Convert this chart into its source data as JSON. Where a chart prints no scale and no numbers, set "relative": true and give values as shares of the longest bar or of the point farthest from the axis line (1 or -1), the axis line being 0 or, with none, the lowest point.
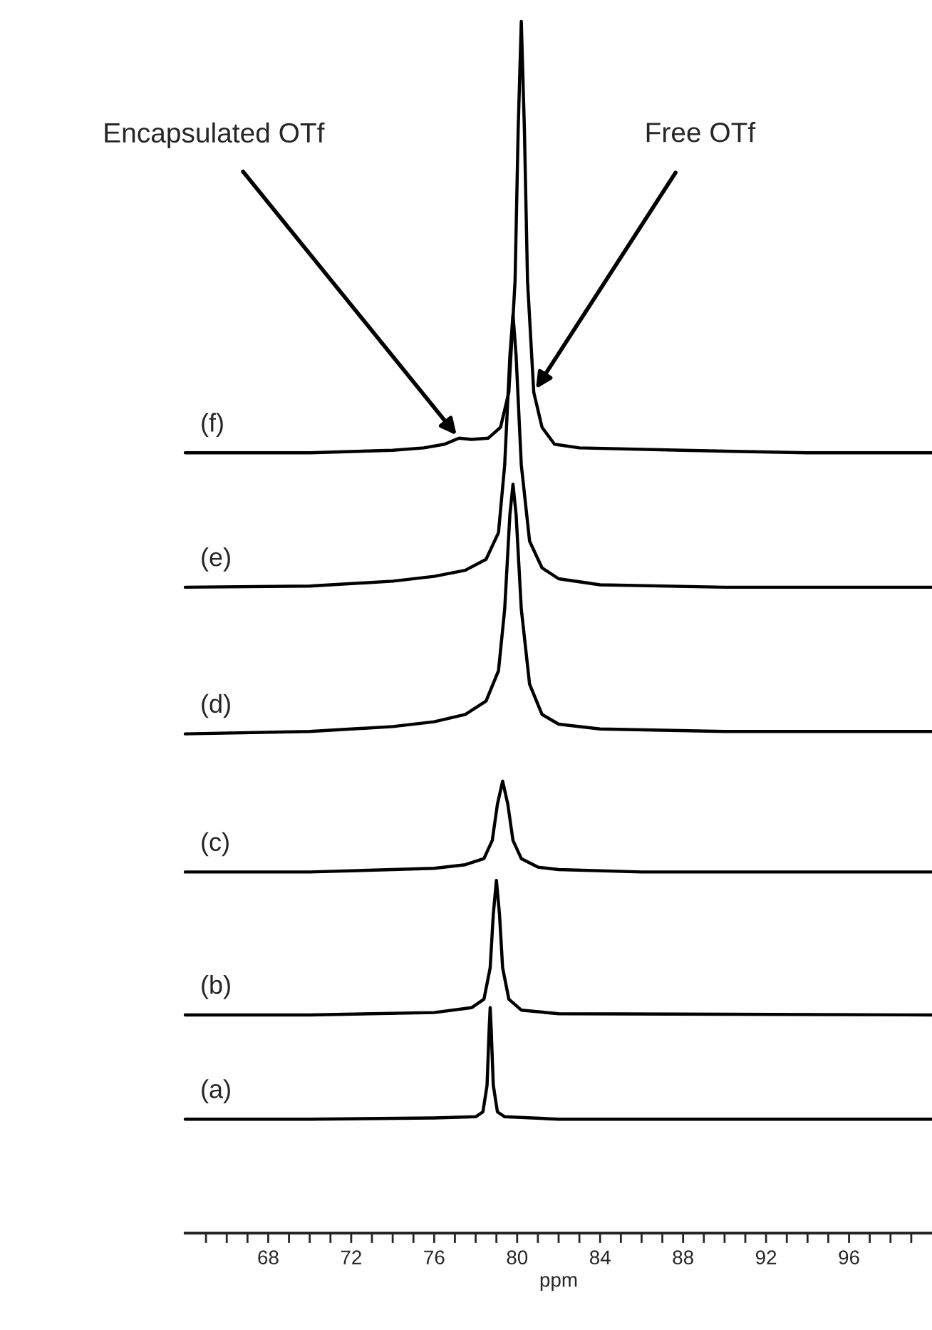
{
  "chart_data": {
    "type": "line",
    "relative": true,
    "tick_labels": "x",
    "xlim": [
      64,
      100
    ],
    "grid": false,
    "legend": false,
    "xlabel": "ppm",
    "xticks": [
      {
        "value": 65,
        "label": null
      },
      {
        "value": 66,
        "label": null
      },
      {
        "value": 67,
        "label": null
      },
      68,
      {
        "value": 69,
        "label": null
      },
      {
        "value": 70,
        "label": null
      },
      {
        "value": 71,
        "label": null
      },
      72,
      {
        "value": 73,
        "label": null
      },
      {
        "value": 74,
        "label": null
      },
      {
        "value": 75,
        "label": null
      },
      76,
      {
        "value": 77,
        "label": null
      },
      {
        "value": 78,
        "label": null
      },
      {
        "value": 79,
        "label": null
      },
      80,
      {
        "value": 81,
        "label": null
      },
      {
        "value": 82,
        "label": null
      },
      {
        "value": 83,
        "label": null
      },
      84,
      {
        "value": 85,
        "label": null
      },
      {
        "value": 86,
        "label": null
      },
      {
        "value": 87,
        "label": null
      },
      88,
      {
        "value": 89,
        "label": null
      },
      {
        "value": 90,
        "label": null
      },
      {
        "value": 91,
        "label": null
      },
      92,
      {
        "value": 93,
        "label": null
      },
      {
        "value": 94,
        "label": null
      },
      {
        "value": 95,
        "label": null
      },
      96,
      {
        "value": 97,
        "label": null
      },
      {
        "value": 98,
        "label": null
      },
      {
        "value": 99,
        "label": null
      }
    ],
    "series": [
      {
        "name": "(f)",
        "color": "#000000",
        "x": [
          64,
          70,
          74,
          75.5,
          76.5,
          77.2,
          77.8,
          78.6,
          79.2,
          79.6,
          79.9,
          80.05,
          80.2,
          80.35,
          80.5,
          80.8,
          81.2,
          81.8,
          83,
          88,
          94,
          100
        ],
        "values": [
          0.644,
          0.644,
          0.646,
          0.648,
          0.651,
          0.656,
          0.655,
          0.656,
          0.665,
          0.694,
          0.786,
          0.911,
          1.0,
          0.911,
          0.786,
          0.694,
          0.665,
          0.651,
          0.648,
          0.646,
          0.644,
          0.644
        ]
      },
      {
        "name": "(e)",
        "color": "#000000",
        "x": [
          64,
          70,
          74,
          76,
          77.5,
          78.5,
          79.1,
          79.4,
          79.65,
          79.8,
          79.95,
          80.2,
          80.6,
          81.2,
          82,
          84,
          90,
          100
        ],
        "values": [
          0.533,
          0.534,
          0.538,
          0.542,
          0.547,
          0.556,
          0.578,
          0.634,
          0.724,
          0.758,
          0.724,
          0.634,
          0.571,
          0.549,
          0.54,
          0.535,
          0.533,
          0.533
        ]
      },
      {
        "name": "(d)",
        "color": "#000000",
        "x": [
          64,
          70,
          74,
          76,
          77.5,
          78.5,
          79.1,
          79.4,
          79.65,
          79.8,
          79.95,
          80.2,
          80.6,
          81.2,
          82,
          84,
          90,
          100
        ],
        "values": [
          0.412,
          0.414,
          0.418,
          0.422,
          0.428,
          0.439,
          0.464,
          0.515,
          0.593,
          0.618,
          0.593,
          0.515,
          0.453,
          0.428,
          0.42,
          0.416,
          0.414,
          0.414
        ]
      },
      {
        "name": "(c)",
        "color": "#000000",
        "x": [
          64,
          70,
          74,
          76,
          77.5,
          78.4,
          78.8,
          79.05,
          79.3,
          79.55,
          79.8,
          80.2,
          81,
          82,
          86,
          100
        ],
        "values": [
          0.298,
          0.298,
          0.3,
          0.301,
          0.304,
          0.309,
          0.324,
          0.354,
          0.373,
          0.354,
          0.324,
          0.309,
          0.302,
          0.3,
          0.298,
          0.298
        ]
      },
      {
        "name": "(b)",
        "color": "#000000",
        "x": [
          64,
          70,
          76,
          77.8,
          78.4,
          78.7,
          78.85,
          79.0,
          79.15,
          79.3,
          79.6,
          80.2,
          82,
          100
        ],
        "values": [
          0.18,
          0.18,
          0.182,
          0.186,
          0.193,
          0.219,
          0.263,
          0.291,
          0.263,
          0.219,
          0.193,
          0.184,
          0.181,
          0.18
        ]
      },
      {
        "name": "(a)",
        "color": "#000000",
        "x": [
          64,
          70,
          76,
          78.0,
          78.35,
          78.55,
          78.65,
          78.7,
          78.75,
          78.85,
          79.05,
          79.4,
          82,
          90,
          100
        ],
        "values": [
          0.094,
          0.094,
          0.095,
          0.096,
          0.1,
          0.122,
          0.168,
          0.186,
          0.168,
          0.122,
          0.1,
          0.096,
          0.094,
          0.094,
          0.094
        ]
      }
    ],
    "annotations": [
      {
        "text": "Encapsulated OTf",
        "x": 77.2,
        "y": 0.656
      },
      {
        "text": "Free OTf",
        "x": 80.8,
        "y": 0.694
      }
    ]
  }
}
